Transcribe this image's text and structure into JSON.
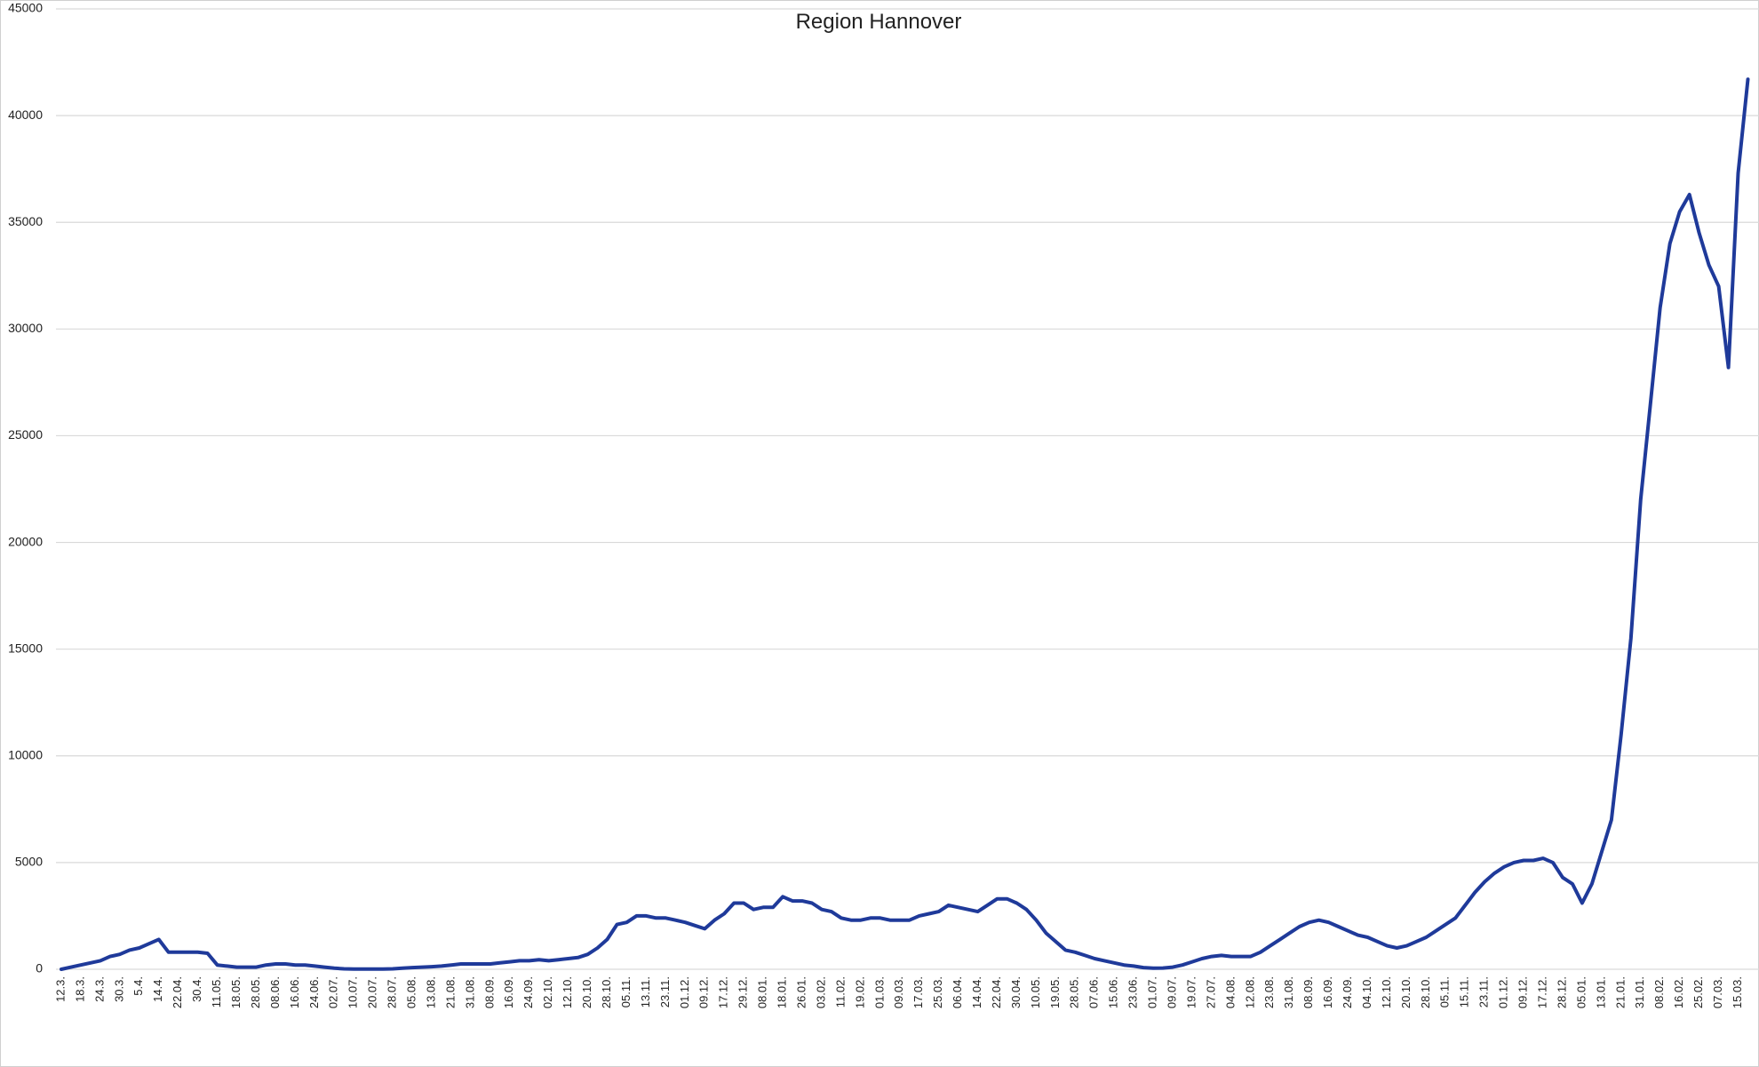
{
  "chart_data": {
    "type": "line",
    "title": "Region Hannover",
    "categories": [
      "12.3.",
      null,
      "18.3.",
      null,
      "24.3.",
      null,
      "30.3.",
      null,
      "5.4.",
      null,
      "14.4.",
      null,
      "22.04.",
      null,
      "30.4.",
      null,
      "11.05.",
      null,
      "18.05.",
      null,
      "28.05.",
      null,
      "08.06.",
      null,
      "16.06.",
      null,
      "24.06.",
      null,
      "02.07.",
      null,
      "10.07.",
      null,
      "20.07.",
      null,
      "28.07.",
      null,
      "05.08.",
      null,
      "13.08.",
      null,
      "21.08.",
      null,
      "31.08.",
      null,
      "08.09.",
      null,
      "16.09.",
      null,
      "24.09.",
      null,
      "02.10.",
      null,
      "12.10.",
      null,
      "20.10.",
      null,
      "28.10.",
      null,
      "05.11.",
      null,
      "13.11.",
      null,
      "23.11.",
      null,
      "01.12.",
      null,
      "09.12.",
      null,
      "17.12.",
      null,
      "29.12.",
      null,
      "08.01.",
      null,
      "18.01.",
      null,
      "26.01.",
      null,
      "03.02.",
      null,
      "11.02.",
      null,
      "19.02.",
      null,
      "01.03.",
      null,
      "09.03.",
      null,
      "17.03.",
      null,
      "25.03.",
      null,
      "06.04.",
      null,
      "14.04.",
      null,
      "22.04.",
      null,
      "30.04.",
      null,
      "10.05.",
      null,
      "19.05.",
      null,
      "28.05.",
      null,
      "07.06.",
      null,
      "15.06.",
      null,
      "23.06.",
      null,
      "01.07.",
      null,
      "09.07.",
      null,
      "19.07.",
      null,
      "27.07.",
      null,
      "04.08.",
      null,
      "12.08.",
      null,
      "23.08.",
      null,
      "31.08.",
      null,
      "08.09.",
      null,
      "16.09.",
      null,
      "24.09.",
      null,
      "04.10.",
      null,
      "12.10.",
      null,
      "20.10.",
      null,
      "28.10.",
      null,
      "05.11.",
      null,
      "15.11.",
      null,
      "23.11.",
      null,
      "01.12.",
      null,
      "09.12.",
      null,
      "17.12.",
      null,
      "28.12.",
      null,
      "05.01.",
      null,
      "13.01.",
      null,
      "21.01.",
      null,
      "31.01.",
      null,
      "08.02.",
      null,
      "16.02.",
      null,
      "25.02.",
      null,
      "07.03.",
      null,
      "15.03.",
      null
    ],
    "values": [
      0,
      100,
      200,
      300,
      400,
      600,
      700,
      900,
      1000,
      1200,
      1400,
      800,
      800,
      800,
      800,
      750,
      200,
      150,
      100,
      100,
      100,
      200,
      250,
      250,
      200,
      200,
      150,
      100,
      50,
      20,
      10,
      10,
      10,
      10,
      20,
      50,
      80,
      100,
      120,
      150,
      200,
      250,
      250,
      250,
      250,
      300,
      350,
      400,
      400,
      450,
      400,
      450,
      500,
      550,
      700,
      1000,
      1400,
      2100,
      2200,
      2500,
      2500,
      2400,
      2400,
      2300,
      2200,
      2050,
      1900,
      2300,
      2600,
      3100,
      3100,
      2800,
      2900,
      2900,
      3400,
      3200,
      3200,
      3100,
      2800,
      2700,
      2400,
      2300,
      2300,
      2400,
      2400,
      2300,
      2300,
      2300,
      2500,
      2600,
      2700,
      3000,
      2900,
      2800,
      2700,
      3000,
      3300,
      3300,
      3100,
      2800,
      2300,
      1700,
      1300,
      900,
      800,
      650,
      500,
      400,
      300,
      200,
      150,
      80,
      50,
      60,
      100,
      200,
      350,
      500,
      600,
      650,
      600,
      600,
      600,
      800,
      1100,
      1400,
      1700,
      2000,
      2200,
      2300,
      2200,
      2000,
      1800,
      1600,
      1500,
      1300,
      1100,
      1000,
      1100,
      1300,
      1500,
      1800,
      2100,
      2400,
      3000,
      3600,
      4100,
      4500,
      4800,
      5000,
      5100,
      5100,
      5200,
      5000,
      4300,
      4000,
      3100,
      4000,
      5500,
      7000,
      11000,
      15500,
      22000,
      26500,
      31000,
      34000,
      35500,
      36300,
      34500,
      33000,
      32000,
      28200,
      37300,
      41700
    ],
    "color": "#1f3a9a",
    "ylim": [
      0,
      45000
    ],
    "yticks": [
      0,
      5000,
      10000,
      15000,
      20000,
      25000,
      30000,
      35000,
      40000,
      45000
    ],
    "grid": true
  }
}
